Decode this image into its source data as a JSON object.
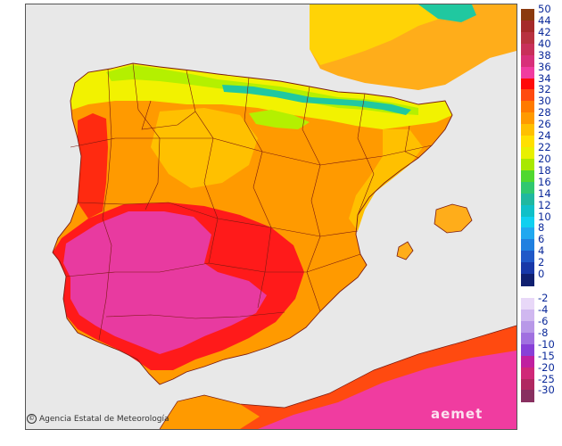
{
  "map": {
    "credit": "Agencia Estatal de Meteorología",
    "brand": "aemet",
    "colors": {
      "sea": "#e8e8e8",
      "boundary": "#7a1a10",
      "pink": "#e83aa0",
      "red": "#ff1a1a",
      "orange": "#ff8c00",
      "lightorange": "#ffad1a",
      "yellow": "#f2f200",
      "lime": "#b4f000",
      "green": "#55e030",
      "teal": "#20c8a0",
      "cyan": "#10c8e0"
    }
  },
  "legend": {
    "positive": [
      {
        "label": "50",
        "color": "#8b3a0e"
      },
      {
        "label": "44",
        "color": "#a52a2a"
      },
      {
        "label": "42",
        "color": "#b83240"
      },
      {
        "label": "40",
        "color": "#c8305a"
      },
      {
        "label": "38",
        "color": "#d8307a"
      },
      {
        "label": "36",
        "color": "#f03ca0"
      },
      {
        "label": "34",
        "color": "#ff0a0a"
      },
      {
        "label": "32",
        "color": "#ff4a10"
      },
      {
        "label": "30",
        "color": "#ff7a00"
      },
      {
        "label": "28",
        "color": "#ff9a00"
      },
      {
        "label": "26",
        "color": "#ffc000"
      },
      {
        "label": "24",
        "color": "#ffe000"
      },
      {
        "label": "22",
        "color": "#e8f000"
      },
      {
        "label": "20",
        "color": "#a8e800"
      },
      {
        "label": "18",
        "color": "#50d830"
      },
      {
        "label": "16",
        "color": "#30c870"
      },
      {
        "label": "14",
        "color": "#20b8a0"
      },
      {
        "label": "12",
        "color": "#10c0c8"
      },
      {
        "label": "10",
        "color": "#10d0f0"
      },
      {
        "label": "8",
        "color": "#20a8f0"
      },
      {
        "label": "6",
        "color": "#2080e0"
      },
      {
        "label": "4",
        "color": "#2058c8"
      },
      {
        "label": "2",
        "color": "#1838a8"
      },
      {
        "label": "0",
        "color": "#102070"
      }
    ],
    "negative": [
      {
        "label": "-2",
        "color": "#e8d8f8"
      },
      {
        "label": "-4",
        "color": "#d0b8f0"
      },
      {
        "label": "-6",
        "color": "#b898e8"
      },
      {
        "label": "-8",
        "color": "#a070e0"
      },
      {
        "label": "-10",
        "color": "#8840d8"
      },
      {
        "label": "-15",
        "color": "#c020a0"
      },
      {
        "label": "-20",
        "color": "#d02878"
      },
      {
        "label": "-25",
        "color": "#b02860"
      },
      {
        "label": "-30",
        "color": "#883060"
      }
    ]
  }
}
